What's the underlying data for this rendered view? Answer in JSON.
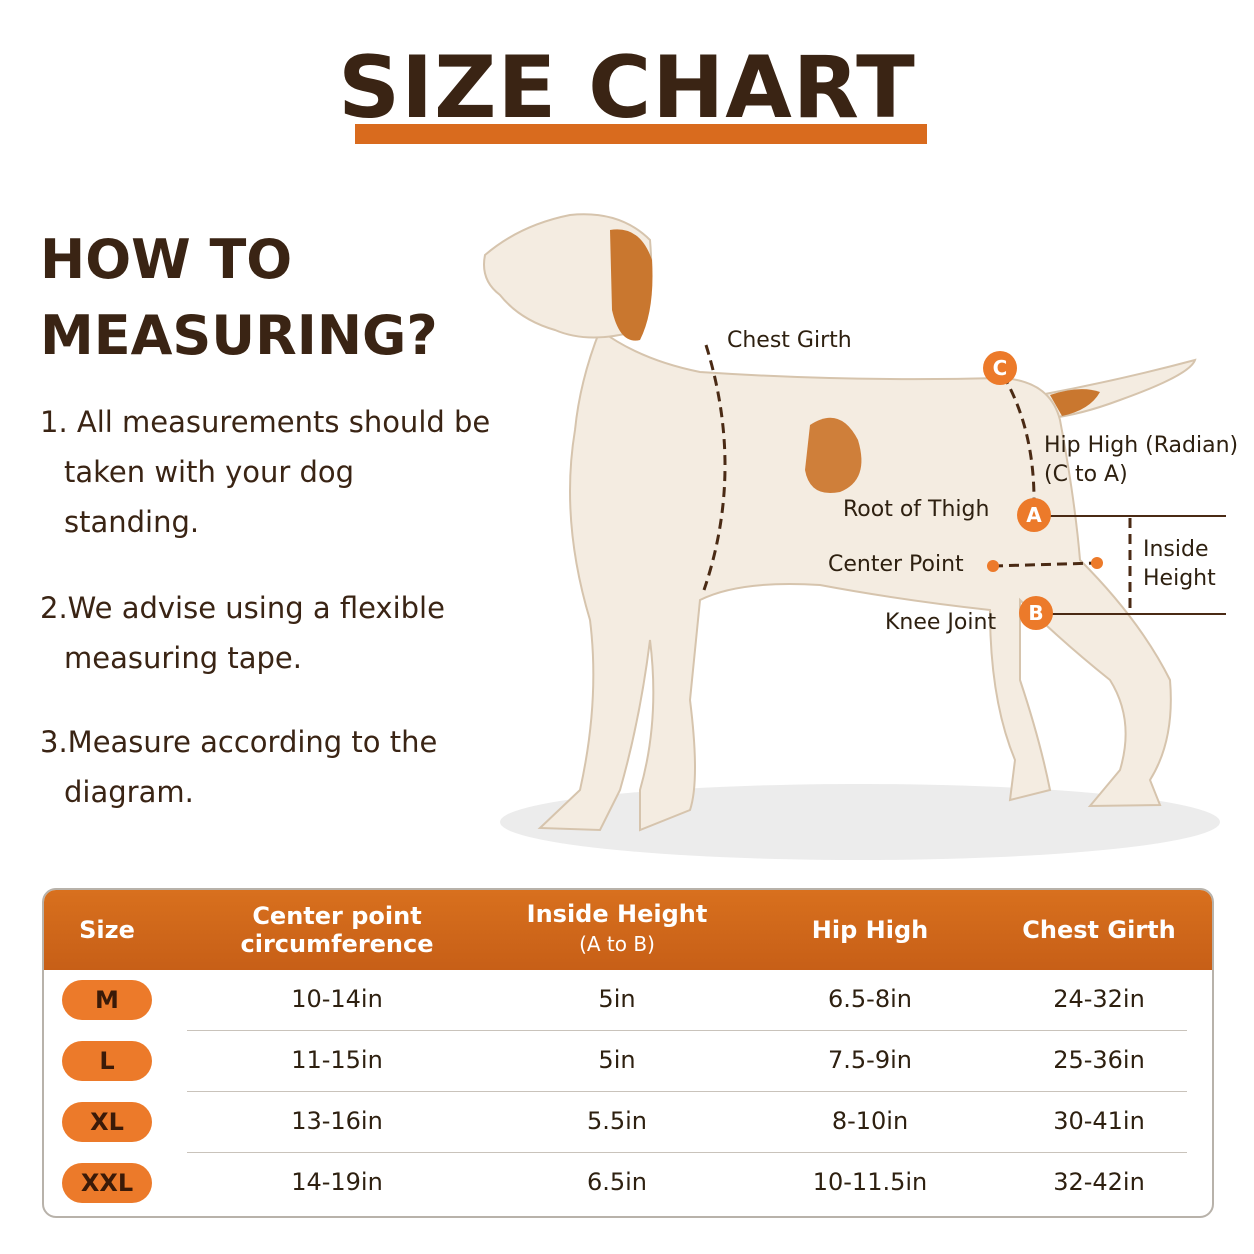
{
  "title": "SIZE CHART",
  "howto": {
    "heading_lines": [
      "HOW TO",
      "MEASURING?"
    ],
    "steps": [
      "1. All measurements should be taken with your dog standing.",
      "2.We advise using a flexible measuring tape.",
      "3.Measure according to the diagram."
    ]
  },
  "diagram": {
    "chest_girth": "Chest Girth",
    "point_c": "C",
    "hip_high": "Hip High (Radian)",
    "hip_high_note": "(C to A)",
    "root_of_thigh": "Root of Thigh",
    "point_a": "A",
    "center_point": "Center Point",
    "inside_height": "Inside Height",
    "point_b": "B",
    "knee_joint": "Knee Joint"
  },
  "table": {
    "headers": [
      "Size",
      "Center point circumference",
      "Inside Height",
      "Hip High",
      "Chest Girth"
    ],
    "inside_height_note": "(A to B)",
    "rows": [
      [
        "M",
        "10-14in",
        "5in",
        "6.5-8in",
        "24-32in"
      ],
      [
        "L",
        "11-15in",
        "5in",
        "7.5-9in",
        "25-36in"
      ],
      [
        "XL",
        "13-16in",
        "5.5in",
        "8-10in",
        "30-41in"
      ],
      [
        "XXL",
        "14-19in",
        "6.5in",
        "10-11.5in",
        "32-42in"
      ]
    ]
  }
}
